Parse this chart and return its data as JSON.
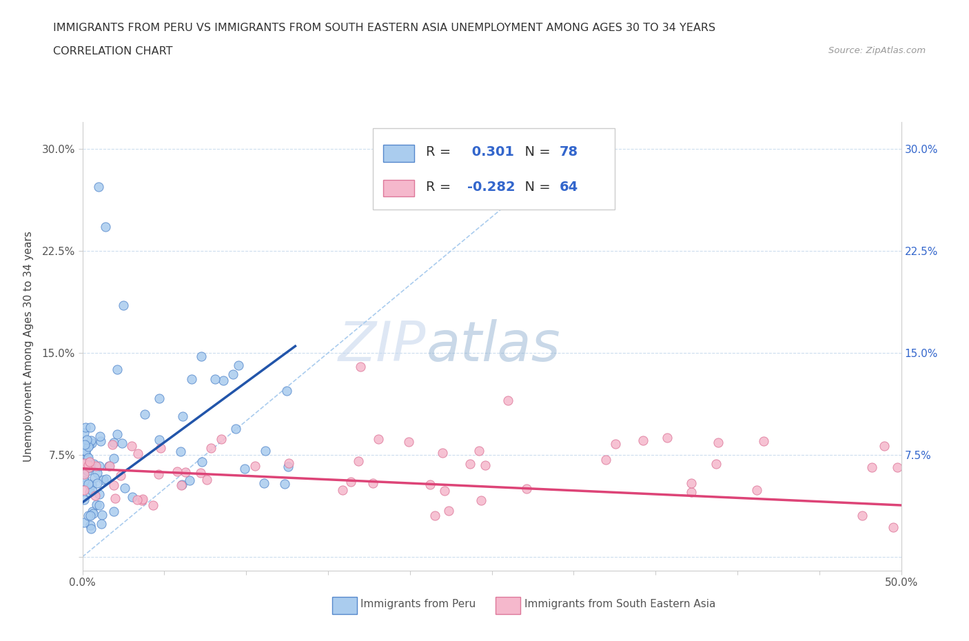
{
  "title_line1": "IMMIGRANTS FROM PERU VS IMMIGRANTS FROM SOUTH EASTERN ASIA UNEMPLOYMENT AMONG AGES 30 TO 34 YEARS",
  "title_line2": "CORRELATION CHART",
  "source_text": "Source: ZipAtlas.com",
  "ylabel": "Unemployment Among Ages 30 to 34 years",
  "xlim": [
    0.0,
    0.5
  ],
  "ylim": [
    -0.01,
    0.32
  ],
  "xtick_positions": [
    0.0,
    0.05,
    0.1,
    0.15,
    0.2,
    0.25,
    0.3,
    0.35,
    0.4,
    0.45,
    0.5
  ],
  "ytick_positions": [
    0.0,
    0.075,
    0.15,
    0.225,
    0.3
  ],
  "ytick_labels_left": [
    "",
    "7.5%",
    "15.0%",
    "22.5%",
    "30.0%"
  ],
  "ytick_labels_right": [
    "",
    "7.5%",
    "15.0%",
    "22.5%",
    "30.0%"
  ],
  "peru_color": "#aaccee",
  "peru_edge_color": "#5588cc",
  "sea_color": "#f5b8cc",
  "sea_edge_color": "#dd7799",
  "trendline_peru_color": "#2255aa",
  "trendline_sea_color": "#dd4477",
  "diag_color": "#aaccee",
  "R_peru": 0.301,
  "N_peru": 78,
  "R_sea": -0.282,
  "N_sea": 64,
  "watermark_zip": "ZIP",
  "watermark_atlas": "atlas",
  "right_label_color": "#3366cc",
  "grid_color": "#ccddee",
  "bottom_legend_peru": "Immigrants from Peru",
  "bottom_legend_sea": "Immigrants from South Eastern Asia"
}
